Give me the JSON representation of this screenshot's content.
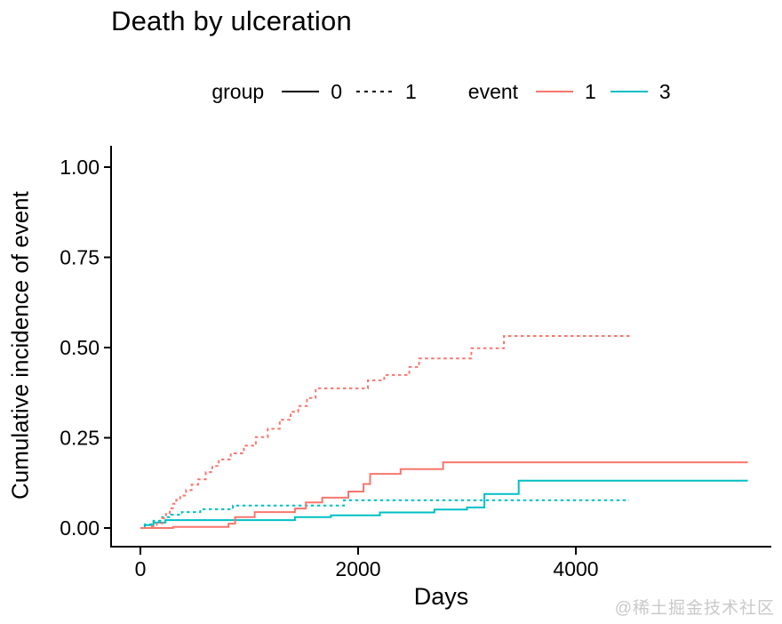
{
  "title": "Death by ulceration",
  "legend": {
    "group_label": "group",
    "event_label": "event",
    "group_items": [
      {
        "label": "0",
        "style": "solid",
        "color": "#000000"
      },
      {
        "label": "1",
        "style": "dotted",
        "color": "#000000"
      }
    ],
    "event_items": [
      {
        "label": "1",
        "style": "solid",
        "color": "#F8766D"
      },
      {
        "label": "3",
        "style": "solid",
        "color": "#00BFC4"
      }
    ]
  },
  "watermark": "@稀土掘金技术社区",
  "colors": {
    "event1": "#F8766D",
    "event3": "#00BFC4",
    "axis": "#000000",
    "tick_text": "#000000",
    "watermark": "#c9c9c9"
  },
  "chart_data": {
    "type": "line",
    "subtype": "step-cumulative-incidence",
    "title": "Death by ulceration",
    "xlabel": "Days",
    "ylabel": "Cumulative incidence of event",
    "xlim": [
      0,
      5800
    ],
    "ylim": [
      0,
      1.05
    ],
    "grid": false,
    "legend_position": "top",
    "x_ticks": [
      {
        "value": 0,
        "label": "0"
      },
      {
        "value": 2000,
        "label": "2000"
      },
      {
        "value": 4000,
        "label": "4000"
      }
    ],
    "y_ticks": [
      {
        "value": 0.0,
        "label": "0.00"
      },
      {
        "value": 0.25,
        "label": "0.25"
      },
      {
        "value": 0.5,
        "label": "0.50"
      },
      {
        "value": 0.75,
        "label": "0.75"
      },
      {
        "value": 1.0,
        "label": "1.00"
      }
    ],
    "series": [
      {
        "name": "group-0-event-3",
        "group": "0",
        "event": "3",
        "color": "#00BFC4",
        "linetype": "solid",
        "points": [
          [
            0,
            0
          ],
          [
            40,
            0.008
          ],
          [
            120,
            0.015
          ],
          [
            230,
            0.022
          ],
          [
            1420,
            0.03
          ],
          [
            1750,
            0.035
          ],
          [
            2200,
            0.043
          ],
          [
            2700,
            0.051
          ],
          [
            3000,
            0.057
          ],
          [
            3160,
            0.094
          ],
          [
            3475,
            0.131
          ],
          [
            5580,
            0.131
          ]
        ]
      },
      {
        "name": "group-1-event-3",
        "group": "1",
        "event": "3",
        "color": "#00BFC4",
        "linetype": "dotted",
        "points": [
          [
            0,
            0
          ],
          [
            40,
            0.01
          ],
          [
            120,
            0.02
          ],
          [
            200,
            0.03
          ],
          [
            280,
            0.037
          ],
          [
            380,
            0.044
          ],
          [
            550,
            0.052
          ],
          [
            850,
            0.062
          ],
          [
            1870,
            0.077
          ],
          [
            4490,
            0.077
          ]
        ]
      },
      {
        "name": "group-0-event-1",
        "group": "0",
        "event": "1",
        "color": "#F8766D",
        "linetype": "solid",
        "points": [
          [
            0,
            0
          ],
          [
            300,
            0.003
          ],
          [
            810,
            0.012
          ],
          [
            870,
            0.03
          ],
          [
            1050,
            0.044
          ],
          [
            1420,
            0.054
          ],
          [
            1520,
            0.071
          ],
          [
            1670,
            0.084
          ],
          [
            1910,
            0.101
          ],
          [
            2050,
            0.122
          ],
          [
            2110,
            0.15
          ],
          [
            2390,
            0.163
          ],
          [
            2780,
            0.182
          ],
          [
            5580,
            0.182
          ]
        ]
      },
      {
        "name": "group-1-event-1",
        "group": "1",
        "event": "1",
        "color": "#F8766D",
        "linetype": "dotted",
        "points": [
          [
            0,
            0
          ],
          [
            90,
            0.005
          ],
          [
            150,
            0.013
          ],
          [
            200,
            0.027
          ],
          [
            235,
            0.042
          ],
          [
            270,
            0.055
          ],
          [
            300,
            0.067
          ],
          [
            330,
            0.078
          ],
          [
            365,
            0.09
          ],
          [
            420,
            0.105
          ],
          [
            470,
            0.12
          ],
          [
            530,
            0.135
          ],
          [
            600,
            0.155
          ],
          [
            660,
            0.172
          ],
          [
            720,
            0.19
          ],
          [
            830,
            0.207
          ],
          [
            950,
            0.228
          ],
          [
            1060,
            0.252
          ],
          [
            1170,
            0.275
          ],
          [
            1280,
            0.3
          ],
          [
            1380,
            0.322
          ],
          [
            1450,
            0.338
          ],
          [
            1530,
            0.36
          ],
          [
            1610,
            0.387
          ],
          [
            2090,
            0.409
          ],
          [
            2240,
            0.424
          ],
          [
            2470,
            0.446
          ],
          [
            2560,
            0.47
          ],
          [
            3040,
            0.498
          ],
          [
            3340,
            0.532
          ],
          [
            4500,
            0.532
          ]
        ]
      }
    ]
  }
}
